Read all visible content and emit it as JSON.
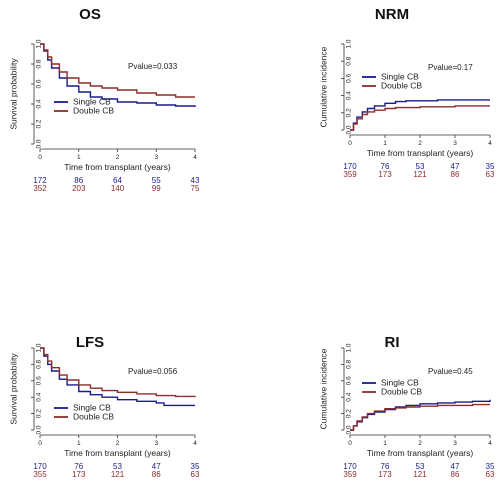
{
  "colors": {
    "single": "#1a1a8c",
    "double": "#8b2d2d",
    "axis": "#333333"
  },
  "chart_data": [
    {
      "type": "line",
      "title": "OS",
      "xlabel": "Time from transplant (years)",
      "ylabel": "Survival probability",
      "xlim": [
        0,
        4
      ],
      "ylim": [
        0,
        1
      ],
      "xticks": [
        "0",
        "1",
        "2",
        "3",
        "4"
      ],
      "yticks": [
        "0.0",
        "0.2",
        "0.4",
        "0.6",
        "0.8",
        "1.0"
      ],
      "pvalue": "Pvalue=0.033",
      "legend_position": "bottom-left",
      "series": [
        {
          "name": "Single CB",
          "color": "#1a1a8c",
          "x": [
            0,
            0.1,
            0.2,
            0.3,
            0.5,
            0.7,
            1.0,
            1.3,
            1.6,
            2.0,
            2.5,
            3.0,
            3.5,
            4.0
          ],
          "y": [
            1.0,
            0.93,
            0.84,
            0.76,
            0.66,
            0.58,
            0.52,
            0.47,
            0.45,
            0.42,
            0.41,
            0.39,
            0.38,
            0.37
          ]
        },
        {
          "name": "Double CB",
          "color": "#8b2d2d",
          "x": [
            0,
            0.1,
            0.2,
            0.3,
            0.5,
            0.7,
            1.0,
            1.3,
            1.6,
            2.0,
            2.5,
            3.0,
            3.5,
            4.0
          ],
          "y": [
            1.0,
            0.94,
            0.87,
            0.8,
            0.72,
            0.66,
            0.61,
            0.58,
            0.56,
            0.54,
            0.51,
            0.49,
            0.47,
            0.47
          ]
        }
      ],
      "risk_table": [
        {
          "name": "Single CB",
          "counts": [
            "172",
            "86",
            "64",
            "55",
            "43"
          ]
        },
        {
          "name": "Double CB",
          "counts": [
            "352",
            "203",
            "140",
            "99",
            "75"
          ]
        }
      ]
    },
    {
      "type": "line",
      "title": "NRM",
      "xlabel": "Time from transplant (years)",
      "ylabel": "Cumulative incidence",
      "xlim": [
        0,
        4
      ],
      "ylim": [
        0,
        1
      ],
      "xticks": [
        "0",
        "1",
        "2",
        "3",
        "4"
      ],
      "yticks": [
        "0.0",
        "0.2",
        "0.4",
        "0.6",
        "0.8",
        "1.0"
      ],
      "pvalue": "Pvalue=0.17",
      "legend_position": "top-left",
      "series": [
        {
          "name": "Single CB",
          "color": "#1a1a8c",
          "x": [
            0,
            0.1,
            0.2,
            0.35,
            0.5,
            0.7,
            1.0,
            1.3,
            1.6,
            2.0,
            2.5,
            3.0,
            3.5,
            4.0
          ],
          "y": [
            0.0,
            0.08,
            0.15,
            0.21,
            0.25,
            0.28,
            0.31,
            0.33,
            0.34,
            0.34,
            0.35,
            0.35,
            0.35,
            0.35
          ]
        },
        {
          "name": "Double CB",
          "color": "#8b2d2d",
          "x": [
            0,
            0.1,
            0.2,
            0.35,
            0.5,
            0.7,
            1.0,
            1.3,
            1.6,
            2.0,
            2.5,
            3.0,
            3.5,
            4.0
          ],
          "y": [
            0.0,
            0.07,
            0.13,
            0.18,
            0.21,
            0.23,
            0.25,
            0.26,
            0.26,
            0.27,
            0.27,
            0.28,
            0.28,
            0.28
          ]
        }
      ],
      "risk_table": [
        {
          "name": "Single CB",
          "counts": [
            "170",
            "76",
            "53",
            "47",
            "35"
          ]
        },
        {
          "name": "Double CB",
          "counts": [
            "359",
            "173",
            "121",
            "86",
            "63"
          ]
        }
      ]
    },
    {
      "type": "line",
      "title": "LFS",
      "xlabel": "Time from transplant (years)",
      "ylabel": "Survival probability",
      "xlim": [
        0,
        4
      ],
      "ylim": [
        0,
        1
      ],
      "xticks": [
        "0",
        "1",
        "2",
        "3",
        "4"
      ],
      "yticks": [
        "0.0",
        "0.2",
        "0.4",
        "0.6",
        "0.8",
        "1.0"
      ],
      "pvalue": "Pvalue=0.056",
      "legend_position": "bottom-left",
      "series": [
        {
          "name": "Single CB",
          "color": "#1a1a8c",
          "x": [
            0,
            0.1,
            0.2,
            0.3,
            0.5,
            0.7,
            1.0,
            1.3,
            1.6,
            2.0,
            2.5,
            3.0,
            3.2,
            4.0
          ],
          "y": [
            1.0,
            0.9,
            0.8,
            0.72,
            0.62,
            0.55,
            0.47,
            0.43,
            0.4,
            0.37,
            0.35,
            0.33,
            0.3,
            0.3
          ]
        },
        {
          "name": "Double CB",
          "color": "#8b2d2d",
          "x": [
            0,
            0.1,
            0.2,
            0.3,
            0.5,
            0.7,
            1.0,
            1.3,
            1.6,
            2.0,
            2.5,
            3.0,
            3.5,
            4.0
          ],
          "y": [
            1.0,
            0.92,
            0.84,
            0.76,
            0.67,
            0.61,
            0.55,
            0.51,
            0.48,
            0.46,
            0.44,
            0.42,
            0.41,
            0.4
          ]
        }
      ],
      "risk_table": [
        {
          "name": "Single CB",
          "counts": [
            "170",
            "76",
            "53",
            "47",
            "35"
          ]
        },
        {
          "name": "Double CB",
          "counts": [
            "355",
            "173",
            "121",
            "86",
            "63"
          ]
        }
      ]
    },
    {
      "type": "line",
      "title": "RI",
      "xlabel": "Time from transplant (years)",
      "ylabel": "Cumulative incidence",
      "xlim": [
        0,
        4
      ],
      "ylim": [
        0,
        1
      ],
      "xticks": [
        "0",
        "1",
        "2",
        "3",
        "4"
      ],
      "yticks": [
        "0.0",
        "0.2",
        "0.4",
        "0.6",
        "0.8",
        "1.0"
      ],
      "pvalue": "Pvalue=0.45",
      "legend_position": "top-left",
      "series": [
        {
          "name": "Single CB",
          "color": "#1a1a8c",
          "x": [
            0,
            0.1,
            0.2,
            0.35,
            0.5,
            0.7,
            1.0,
            1.3,
            1.6,
            2.0,
            2.5,
            3.0,
            3.5,
            4.0
          ],
          "y": [
            0.0,
            0.05,
            0.1,
            0.15,
            0.19,
            0.22,
            0.25,
            0.28,
            0.3,
            0.32,
            0.33,
            0.34,
            0.35,
            0.37
          ]
        },
        {
          "name": "Double CB",
          "color": "#8b2d2d",
          "x": [
            0,
            0.1,
            0.2,
            0.35,
            0.5,
            0.7,
            1.0,
            1.3,
            1.6,
            2.0,
            2.5,
            3.0,
            3.5,
            4.0
          ],
          "y": [
            0.0,
            0.05,
            0.11,
            0.16,
            0.2,
            0.23,
            0.26,
            0.27,
            0.28,
            0.29,
            0.3,
            0.3,
            0.31,
            0.31
          ]
        }
      ],
      "risk_table": [
        {
          "name": "Single CB",
          "counts": [
            "170",
            "76",
            "53",
            "47",
            "35"
          ]
        },
        {
          "name": "Double CB",
          "counts": [
            "359",
            "173",
            "121",
            "86",
            "63"
          ]
        }
      ]
    }
  ]
}
